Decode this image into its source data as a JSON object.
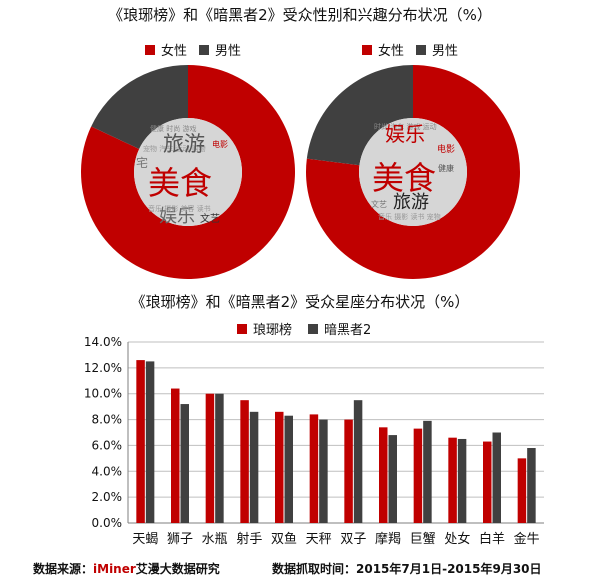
{
  "colors": {
    "female": "#c00000",
    "male": "#404040",
    "series1": "#c00000",
    "series2": "#404040"
  },
  "top": {
    "title": "《琅琊榜》和《暗黑者2》受众性别和兴趣分布状况（%）",
    "legend": [
      "女性",
      "男性"
    ]
  },
  "bottom": {
    "title": "《琅琊榜》和《暗黑者2》受众星座分布状况（%）",
    "legend": [
      "琅琊榜",
      "暗黑者2"
    ]
  },
  "wordclouds": [
    {
      "words": [
        "旅游",
        "美食",
        "娱乐",
        "文艺",
        "电影",
        "宅"
      ]
    },
    {
      "words": [
        "娱乐",
        "美食",
        "旅游",
        "电影",
        "健康",
        "文艺"
      ]
    }
  ],
  "footer": {
    "source_label": "数据来源：",
    "source_brand": "iMiner",
    "source_rest": "艾漫大数据研究",
    "time": "数据抓取时间：2015年7月1日-2015年9月30日"
  },
  "chart_data": [
    {
      "type": "pie",
      "name": "琅琊榜",
      "categories": [
        "女性",
        "男性"
      ],
      "values": [
        82,
        18
      ]
    },
    {
      "type": "pie",
      "name": "暗黑者2",
      "categories": [
        "女性",
        "男性"
      ],
      "values": [
        77,
        23
      ]
    },
    {
      "type": "bar",
      "title": "《琅琊榜》和《暗黑者2》受众星座分布状况（%）",
      "categories": [
        "天蝎",
        "狮子",
        "水瓶",
        "射手",
        "双鱼",
        "天秤",
        "双子",
        "摩羯",
        "巨蟹",
        "处女",
        "白羊",
        "金牛"
      ],
      "series": [
        {
          "name": "琅琊榜",
          "values": [
            12.6,
            10.4,
            10.0,
            9.5,
            8.6,
            8.4,
            8.0,
            7.4,
            7.3,
            6.6,
            6.3,
            5.0
          ]
        },
        {
          "name": "暗黑者2",
          "values": [
            12.5,
            9.2,
            10.0,
            8.6,
            8.3,
            8.0,
            9.5,
            6.8,
            7.9,
            6.5,
            7.0,
            5.8
          ]
        }
      ],
      "ylim": [
        0,
        14
      ],
      "yticks": [
        "0.0%",
        "2.0%",
        "4.0%",
        "6.0%",
        "8.0%",
        "10.0%",
        "12.0%",
        "14.0%"
      ],
      "grid": true,
      "legend": "top"
    }
  ]
}
